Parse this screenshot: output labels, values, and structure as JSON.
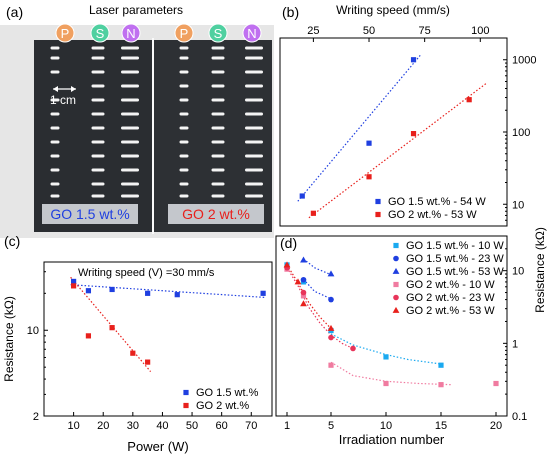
{
  "colors": {
    "blue": "#1f3fe0",
    "red": "#e8201c",
    "lightblue": "#1aa9f0",
    "pink": "#f07ba0",
    "magenta": "#e8345a",
    "badge_orange": "#f0a060",
    "badge_green": "#4fd0a0",
    "badge_purple": "#c070f0",
    "photo_dark": "#2a2d31"
  },
  "panel_a": {
    "letter": "(a)",
    "title": "Laser parameters",
    "scale_label": "1 cm",
    "badges": [
      "P",
      "S",
      "N",
      "P",
      "S",
      "N"
    ],
    "left_label": "GO 1.5 wt.%",
    "right_label": "GO 2 wt.%"
  },
  "chart_data": [
    {
      "panel": "(b)",
      "type": "scatter",
      "x_top_label": "Writing speed (mm/s)",
      "ylabel_right": "Resistance (kΩ)",
      "xlim": [
        10,
        112
      ],
      "ylim": [
        5,
        2000
      ],
      "yscale": "log",
      "x_ticks": [
        25,
        50,
        75,
        100
      ],
      "y_ticks": [
        10,
        100,
        1000
      ],
      "series": [
        {
          "name": "GO 1.5 wt.% -  54 W",
          "color": "#1f3fe0",
          "marker": "square",
          "x": [
            20,
            50,
            70
          ],
          "y": [
            13,
            70,
            1000
          ]
        },
        {
          "name": "GO 2 wt.% - 53 W",
          "color": "#e8201c",
          "marker": "square",
          "x": [
            25,
            50,
            70,
            95
          ],
          "y": [
            7.5,
            24,
            95,
            280
          ]
        }
      ],
      "fits": [
        {
          "color": "#1f3fe0",
          "x": [
            18,
            73
          ],
          "y": [
            11,
            1150
          ]
        },
        {
          "color": "#e8201c",
          "x": [
            23,
            103
          ],
          "y": [
            6.5,
            480
          ]
        }
      ]
    },
    {
      "panel": "(c)",
      "type": "scatter",
      "annotation": "Writing speed (V) =30 mm/s",
      "xlabel": "Power (W)",
      "ylabel": "Resistance (kΩ)",
      "xlim": [
        0,
        77
      ],
      "ylim": [
        2,
        36
      ],
      "yscale": "log",
      "x_ticks": [
        10,
        20,
        30,
        40,
        50,
        60,
        70
      ],
      "y_ticks": [
        2,
        10
      ],
      "series": [
        {
          "name": "GO 1.5 wt.%",
          "color": "#1f3fe0",
          "marker": "square",
          "x": [
            10,
            15,
            23,
            35,
            45,
            74
          ],
          "y": [
            25,
            21,
            21.5,
            20,
            19.5,
            20
          ]
        },
        {
          "name": "GO 2 wt.%",
          "color": "#e8201c",
          "marker": "square",
          "x": [
            10,
            15,
            23,
            30,
            35
          ],
          "y": [
            23,
            9,
            10.5,
            6.5,
            5.5
          ]
        }
      ],
      "fits": [
        {
          "color": "#1f3fe0",
          "x": [
            9,
            75
          ],
          "y": [
            23.5,
            18.5
          ]
        },
        {
          "color": "#e8201c",
          "x": [
            9,
            36
          ],
          "y": [
            27,
            4.6
          ]
        }
      ]
    },
    {
      "panel": "(d)",
      "type": "scatter",
      "xlabel": "Irradiation number",
      "ylabel_right": "Resistance (kΩ)",
      "xlim": [
        0,
        21
      ],
      "ylim": [
        0.1,
        30
      ],
      "yscale": "log",
      "x_ticks": [
        1,
        5,
        10,
        15,
        20
      ],
      "y_ticks": [
        0.1,
        1,
        10
      ],
      "series": [
        {
          "name": "GO 1.5 wt.% - 10 W",
          "color": "#1aa9f0",
          "marker": "square",
          "x": [
            1,
            2.5,
            5,
            10,
            15
          ],
          "y": [
            12,
            7,
            1.5,
            0.65,
            0.5
          ]
        },
        {
          "name": "GO 1.5 wt.% -  23 W",
          "color": "#1f3fe0",
          "marker": "circle",
          "x": [
            2.5,
            5
          ],
          "y": [
            7.5,
            4
          ]
        },
        {
          "name": "GO 1.5 wt.% -  53 W",
          "color": "#1f3fe0",
          "marker": "triangle",
          "x": [
            2.5,
            5
          ],
          "y": [
            14,
            9
          ]
        },
        {
          "name": "GO 2 wt.% - 10 W",
          "color": "#f07ba0",
          "marker": "square",
          "x": [
            1,
            2.5,
            5,
            10,
            15,
            20
          ],
          "y": [
            10.5,
            4.5,
            0.5,
            0.28,
            0.27,
            0.28
          ]
        },
        {
          "name": "GO 2 wt.% - 23 W",
          "color": "#e8345a",
          "marker": "circle",
          "x": [
            1,
            2.5,
            5,
            7
          ],
          "y": [
            11,
            5,
            1.2,
            0.85
          ]
        },
        {
          "name": "GO 2 wt.% - 53 W",
          "color": "#e8201c",
          "marker": "triangle",
          "x": [
            1,
            2,
            2.5,
            5
          ],
          "y": [
            12,
            7,
            3.5,
            1.6
          ]
        }
      ],
      "fits": [
        {
          "color": "#1aa9f0",
          "x": [
            5,
            7,
            10,
            12,
            15
          ],
          "y": [
            1.35,
            0.95,
            0.7,
            0.6,
            0.52
          ]
        },
        {
          "color": "#1f3fe0",
          "x": [
            2.5,
            3.5,
            5
          ],
          "y": [
            7.6,
            5.2,
            4.1
          ]
        },
        {
          "color": "#1f3fe0",
          "x": [
            2.5,
            3.5,
            5
          ],
          "y": [
            14.5,
            11,
            8.8
          ]
        },
        {
          "color": "#f07ba0",
          "x": [
            5,
            7,
            10,
            13,
            16
          ],
          "y": [
            0.55,
            0.36,
            0.3,
            0.28,
            0.27
          ]
        },
        {
          "color": "#e8345a",
          "x": [
            1,
            2,
            3,
            4,
            5,
            6,
            7
          ],
          "y": [
            11,
            6.2,
            3.1,
            1.9,
            1.3,
            1.0,
            0.85
          ]
        },
        {
          "color": "#e8201c",
          "x": [
            1,
            2,
            3,
            4,
            5
          ],
          "y": [
            12,
            6.8,
            3.6,
            2.3,
            1.6
          ]
        }
      ]
    }
  ]
}
